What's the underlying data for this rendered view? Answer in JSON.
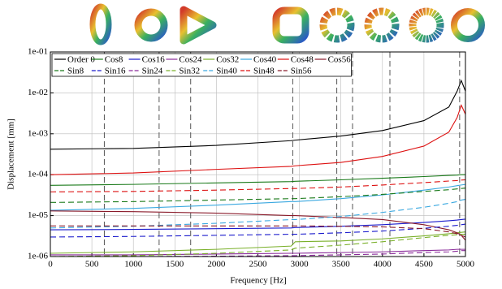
{
  "chart_data": {
    "type": "line",
    "xlabel": "Frequency [Hz]",
    "ylabel": "Displacement [mm]",
    "log_y": true,
    "grid": true,
    "legend": "upper left",
    "xlim": [
      0,
      5000
    ],
    "xticks": [
      0,
      500,
      1000,
      1500,
      2000,
      2500,
      3000,
      3500,
      4000,
      4500,
      5000
    ],
    "ylim": [
      1e-06,
      0.1
    ],
    "yticks": [
      {
        "value": 1e-06,
        "label": "1e-06"
      },
      {
        "value": 1e-05,
        "label": "1e-05"
      },
      {
        "value": 0.0001,
        "label": "1e-04"
      },
      {
        "value": 0.001,
        "label": "1e-03"
      },
      {
        "value": 0.01,
        "label": "1e-02"
      },
      {
        "value": 0.1,
        "label": "1e-01"
      }
    ],
    "vlines": [
      650,
      1310,
      1690,
      2920,
      3450,
      3640,
      4090,
      4930
    ],
    "x": [
      0,
      1000,
      2000,
      2900,
      2950,
      3500,
      4000,
      4500,
      4800,
      4900,
      4950,
      5000
    ],
    "series": [
      {
        "name": "Order 0",
        "color": "#000000",
        "dashed": false,
        "values": [
          0.00042,
          0.00044,
          0.00052,
          0.00068,
          0.0007,
          0.00088,
          0.0012,
          0.0021,
          0.0045,
          0.011,
          0.02,
          0.011
        ]
      },
      {
        "name": "Cos8",
        "color": "#1a7a1a",
        "dashed": false,
        "values": [
          5.5e-05,
          5.8e-05,
          6.3e-05,
          6.8e-05,
          6.9e-05,
          7.5e-05,
          8.2e-05,
          9e-05,
          9.6e-05,
          9.8e-05,
          0.0001,
          0.0001
        ]
      },
      {
        "name": "Cos16",
        "color": "#1a1acc",
        "dashed": false,
        "values": [
          4.5e-06,
          4.6e-06,
          4.8e-06,
          5e-06,
          5.1e-06,
          5.5e-06,
          6e-06,
          6.8e-06,
          7.5e-06,
          7.8e-06,
          8e-06,
          8.2e-06
        ]
      },
      {
        "name": "Cos24",
        "color": "#8a2a9a",
        "dashed": false,
        "values": [
          1.1e-06,
          1.1e-06,
          1.15e-06,
          1.2e-06,
          1.2e-06,
          1.25e-06,
          1.3e-06,
          1.4e-06,
          1.45e-06,
          1.5e-06,
          1.5e-06,
          1.5e-06
        ]
      },
      {
        "name": "Cos32",
        "color": "#7ab02a",
        "dashed": false,
        "values": [
          1.2e-06,
          1.3e-06,
          1.5e-06,
          1.8e-06,
          2.3e-06,
          2.4e-06,
          2.7e-06,
          3.2e-06,
          3.6e-06,
          3.8e-06,
          3.9e-06,
          4e-06
        ]
      },
      {
        "name": "Cos40",
        "color": "#3aa8e0",
        "dashed": false,
        "values": [
          1.35e-05,
          1.5e-05,
          1.8e-05,
          2.2e-05,
          2.2e-05,
          2.6e-05,
          3.2e-05,
          4.2e-05,
          5e-05,
          5.4e-05,
          5.6e-05,
          5.8e-05
        ]
      },
      {
        "name": "Cos48",
        "color": "#dd1111",
        "dashed": false,
        "values": [
          0.0001,
          0.00011,
          0.000135,
          0.00016,
          0.000165,
          0.0002,
          0.00028,
          0.0005,
          0.0011,
          0.0025,
          0.005,
          0.003
        ]
      },
      {
        "name": "Cos56",
        "color": "#8a1a2a",
        "dashed": false,
        "values": [
          1.3e-05,
          1.25e-05,
          1.15e-05,
          1e-05,
          1e-05,
          9e-06,
          8e-06,
          6e-06,
          4.5e-06,
          3.8e-06,
          3.3e-06,
          2.5e-06
        ]
      },
      {
        "name": "Sin8",
        "color": "#1a7a1a",
        "dashed": true,
        "values": [
          2.1e-05,
          2.2e-05,
          2.4e-05,
          2.6e-05,
          2.6e-05,
          2.9e-05,
          3.3e-05,
          3.9e-05,
          4.3e-05,
          4.5e-05,
          4.6e-05,
          4.7e-05
        ]
      },
      {
        "name": "Sin16",
        "color": "#1a1acc",
        "dashed": true,
        "values": [
          3e-06,
          3.1e-06,
          3.3e-06,
          3.5e-06,
          3.5e-06,
          3.8e-06,
          4.2e-06,
          4.9e-06,
          5.5e-06,
          5.8e-06,
          6e-06,
          6.2e-06
        ]
      },
      {
        "name": "Sin24",
        "color": "#8a2a9a",
        "dashed": true,
        "values": [
          1e-06,
          1e-06,
          1.02e-06,
          1.05e-06,
          1.05e-06,
          1.1e-06,
          1.15e-06,
          1.25e-06,
          1.3e-06,
          1.35e-06,
          1.4e-06,
          1.4e-06
        ]
      },
      {
        "name": "Sin32",
        "color": "#7ab02a",
        "dashed": true,
        "values": [
          1e-06,
          1.05e-06,
          1.2e-06,
          1.45e-06,
          1.6e-06,
          1.9e-06,
          2.3e-06,
          2.9e-06,
          3.3e-06,
          3.4e-06,
          3.5e-06,
          3.5e-06
        ]
      },
      {
        "name": "Sin40",
        "color": "#3aa8e0",
        "dashed": true,
        "values": [
          5e-06,
          5.5e-06,
          6.5e-06,
          8e-06,
          8e-06,
          9.5e-06,
          1.2e-05,
          1.6e-05,
          2e-05,
          2.2e-05,
          2.4e-05,
          2.5e-05
        ]
      },
      {
        "name": "Sin48",
        "color": "#dd1111",
        "dashed": true,
        "values": [
          3.8e-05,
          3.9e-05,
          4.2e-05,
          4.6e-05,
          4.6e-05,
          5e-05,
          5.6e-05,
          6.4e-05,
          7e-05,
          7.2e-05,
          7.4e-05,
          7.5e-05
        ]
      },
      {
        "name": "Sin56",
        "color": "#8a1a2a",
        "dashed": true,
        "values": [
          5.6e-06,
          5.6e-06,
          5.6e-06,
          5.6e-06,
          5.6e-06,
          5.5e-06,
          5.3e-06,
          4.8e-06,
          4e-06,
          3.6e-06,
          3.3e-06,
          3e-06
        ]
      }
    ]
  }
}
